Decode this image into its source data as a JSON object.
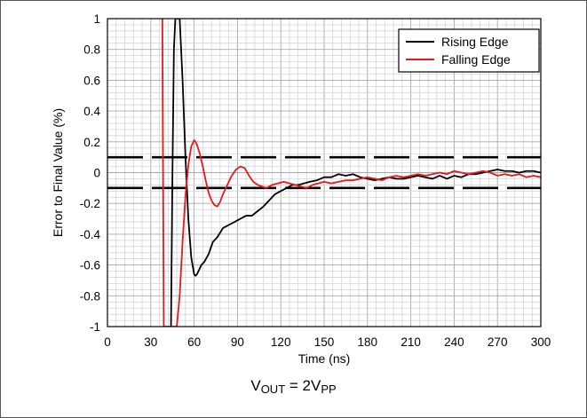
{
  "chart_data": {
    "type": "line",
    "xlabel": "Time (ns)",
    "ylabel": "Error to Final Value (%)",
    "xlim": [
      0,
      300
    ],
    "ylim": [
      -1,
      1
    ],
    "x_ticks": [
      0,
      30,
      60,
      90,
      120,
      150,
      180,
      210,
      240,
      270,
      300
    ],
    "y_ticks": [
      -1,
      -0.8,
      -0.6,
      -0.4,
      -0.2,
      0,
      0.2,
      0.4,
      0.6,
      0.8,
      1
    ],
    "x_tick_labels": [
      "0",
      "30",
      "60",
      "90",
      "120",
      "150",
      "180",
      "210",
      "240",
      "270",
      "300"
    ],
    "y_tick_labels": [
      "-1",
      "-0.8",
      "-0.6",
      "-0.4",
      "-0.2",
      "0",
      "0.2",
      "0.4",
      "0.6",
      "0.8",
      "1"
    ],
    "grid": true,
    "legend_position": "top-right",
    "reference_lines": [
      0.1,
      -0.1
    ],
    "series": [
      {
        "name": "Rising Edge",
        "color": "#000000",
        "x": [
          44,
          45,
          46,
          47,
          48,
          49,
          50,
          52,
          54,
          56,
          58,
          60,
          61,
          62,
          63,
          65,
          67,
          70,
          73,
          76,
          80,
          84,
          88,
          92,
          96,
          100,
          104,
          108,
          112,
          116,
          120,
          124,
          128,
          132,
          136,
          140,
          145,
          150,
          155,
          160,
          165,
          170,
          175,
          180,
          185,
          190,
          195,
          200,
          205,
          210,
          215,
          220,
          225,
          230,
          235,
          240,
          245,
          250,
          255,
          260,
          265,
          270,
          275,
          280,
          285,
          290,
          295,
          300
        ],
        "y": [
          -1,
          0,
          0.8,
          1,
          1,
          1,
          1,
          0.6,
          0.1,
          -0.3,
          -0.55,
          -0.66,
          -0.67,
          -0.66,
          -0.64,
          -0.6,
          -0.58,
          -0.53,
          -0.45,
          -0.42,
          -0.36,
          -0.34,
          -0.32,
          -0.3,
          -0.28,
          -0.28,
          -0.25,
          -0.22,
          -0.18,
          -0.14,
          -0.12,
          -0.1,
          -0.08,
          -0.08,
          -0.07,
          -0.06,
          -0.05,
          -0.03,
          -0.03,
          -0.01,
          -0.02,
          -0.01,
          -0.03,
          -0.04,
          -0.05,
          -0.04,
          -0.03,
          -0.04,
          -0.04,
          -0.03,
          -0.02,
          -0.03,
          -0.04,
          -0.02,
          -0.04,
          -0.02,
          -0.03,
          -0.01,
          -0.01,
          0,
          0.01,
          0.02,
          0.01,
          0.01,
          0,
          0.01,
          0.01,
          0
        ]
      },
      {
        "name": "Falling Edge",
        "color": "#e41a1c",
        "x": [
          37,
          38,
          39,
          40,
          48,
          50,
          52,
          54,
          56,
          58,
          60,
          61,
          62,
          64,
          66,
          68,
          70,
          72,
          74,
          76,
          78,
          80,
          83,
          86,
          89,
          92,
          95,
          98,
          101,
          104,
          107,
          110,
          114,
          118,
          122,
          126,
          130,
          134,
          138,
          142,
          146,
          150,
          155,
          160,
          165,
          170,
          175,
          180,
          185,
          190,
          195,
          200,
          205,
          210,
          215,
          220,
          225,
          230,
          235,
          240,
          245,
          250,
          255,
          260,
          265,
          270,
          275,
          280,
          285,
          290,
          295,
          300
        ],
        "y": [
          1,
          1,
          -1,
          -1,
          -1,
          -0.8,
          -0.45,
          -0.15,
          0.05,
          0.17,
          0.21,
          0.2,
          0.18,
          0.12,
          0.04,
          -0.05,
          -0.13,
          -0.18,
          -0.21,
          -0.22,
          -0.19,
          -0.14,
          -0.08,
          -0.02,
          0.02,
          0.04,
          0.03,
          -0.02,
          -0.06,
          -0.08,
          -0.09,
          -0.1,
          -0.08,
          -0.07,
          -0.06,
          -0.07,
          -0.08,
          -0.09,
          -0.1,
          -0.08,
          -0.07,
          -0.06,
          -0.07,
          -0.06,
          -0.05,
          -0.05,
          -0.04,
          -0.03,
          -0.04,
          -0.05,
          -0.03,
          -0.02,
          -0.03,
          -0.02,
          -0.01,
          -0.02,
          -0.01,
          0,
          -0.01,
          0.01,
          0,
          -0.01,
          0,
          0.01,
          0,
          -0.02,
          -0.01,
          -0.02,
          -0.01,
          -0.03,
          -0.02,
          -0.03
        ]
      }
    ]
  },
  "caption": {
    "prefix": "V",
    "prefix_sub": "OUT",
    "middle": " = 2V",
    "suffix_sub": "PP"
  }
}
